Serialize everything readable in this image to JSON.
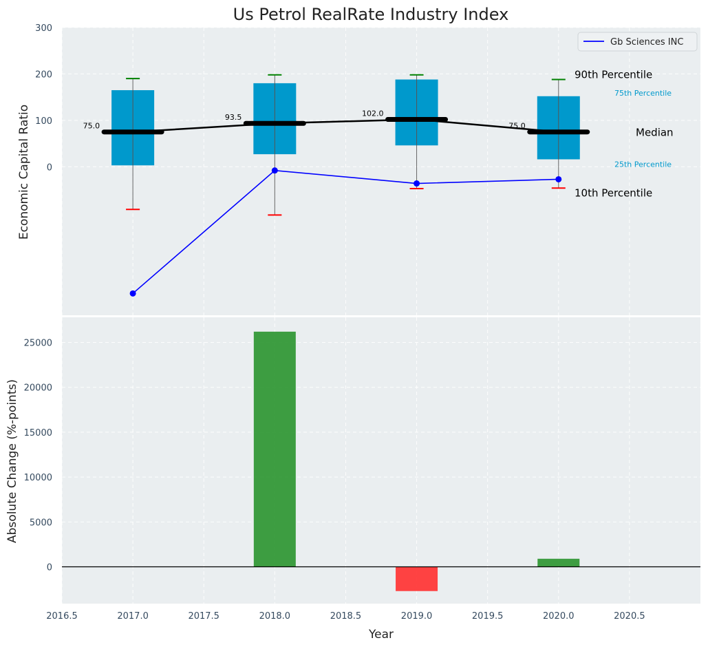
{
  "chart_data": [
    {
      "type": "box",
      "title": "Us Petrol RealRate Industry Index",
      "xlabel": "",
      "ylabel": "Economic Capital Ratio",
      "xlim": [
        2016.5,
        2021.0
      ],
      "ylim": [
        -320,
        300
      ],
      "yticks": [
        0,
        100,
        200,
        300
      ],
      "categories": [
        2017,
        2018,
        2019,
        2020
      ],
      "boxes": [
        {
          "year": 2017,
          "p10": -92,
          "p25": 3,
          "median": 75.0,
          "median_label": "75.0",
          "p75": 165,
          "p90": 190
        },
        {
          "year": 2018,
          "p10": -104,
          "p25": 27,
          "median": 93.5,
          "median_label": "93.5",
          "p75": 180,
          "p90": 198
        },
        {
          "year": 2019,
          "p10": -47,
          "p25": 46,
          "median": 102.0,
          "median_label": "102.0",
          "p75": 188,
          "p90": 198
        },
        {
          "year": 2020,
          "p10": -46,
          "p25": 16,
          "median": 75.0,
          "median_label": "75.0",
          "p75": 152,
          "p90": 188
        }
      ],
      "series": [
        {
          "name": "Gb Sciences INC",
          "x": [
            2017,
            2018,
            2019,
            2020
          ],
          "values": [
            -273,
            -8,
            -36,
            -27
          ],
          "color": "#0000ff"
        }
      ],
      "legend": {
        "position": "top-right",
        "entries": [
          "Gb Sciences INC"
        ]
      },
      "annotations": {
        "p90": "90th Percentile",
        "p75": "75th Percentile",
        "median": "Median",
        "p25": "25th Percentile",
        "p10": "10th Percentile"
      },
      "colors": {
        "box": "#0099cc",
        "median": "#000000",
        "p90_cap": "#008000",
        "p10_cap": "#ff0000",
        "series": "#0000ff",
        "bg": "#eaeef0"
      }
    },
    {
      "type": "bar",
      "title": "",
      "xlabel": "Year",
      "ylabel": "Absolute Change (%-points)",
      "xlim": [
        2016.5,
        2021.0
      ],
      "xticks": [
        2016.5,
        2017.0,
        2017.5,
        2018.0,
        2018.5,
        2019.0,
        2019.5,
        2020.0,
        2020.5
      ],
      "xtick_labels": [
        "2016.5",
        "2017.0",
        "2017.5",
        "2018.0",
        "2018.5",
        "2019.0",
        "2019.5",
        "2020.0",
        "2020.5"
      ],
      "ylim": [
        -4100,
        27800
      ],
      "yticks": [
        0,
        5000,
        10000,
        15000,
        20000,
        25000
      ],
      "categories": [
        2018,
        2019,
        2020
      ],
      "values": [
        26200,
        -2700,
        900
      ],
      "colors": {
        "positive": "#2e9632",
        "negative": "#ff3333",
        "bg": "#eaeef0"
      }
    }
  ]
}
